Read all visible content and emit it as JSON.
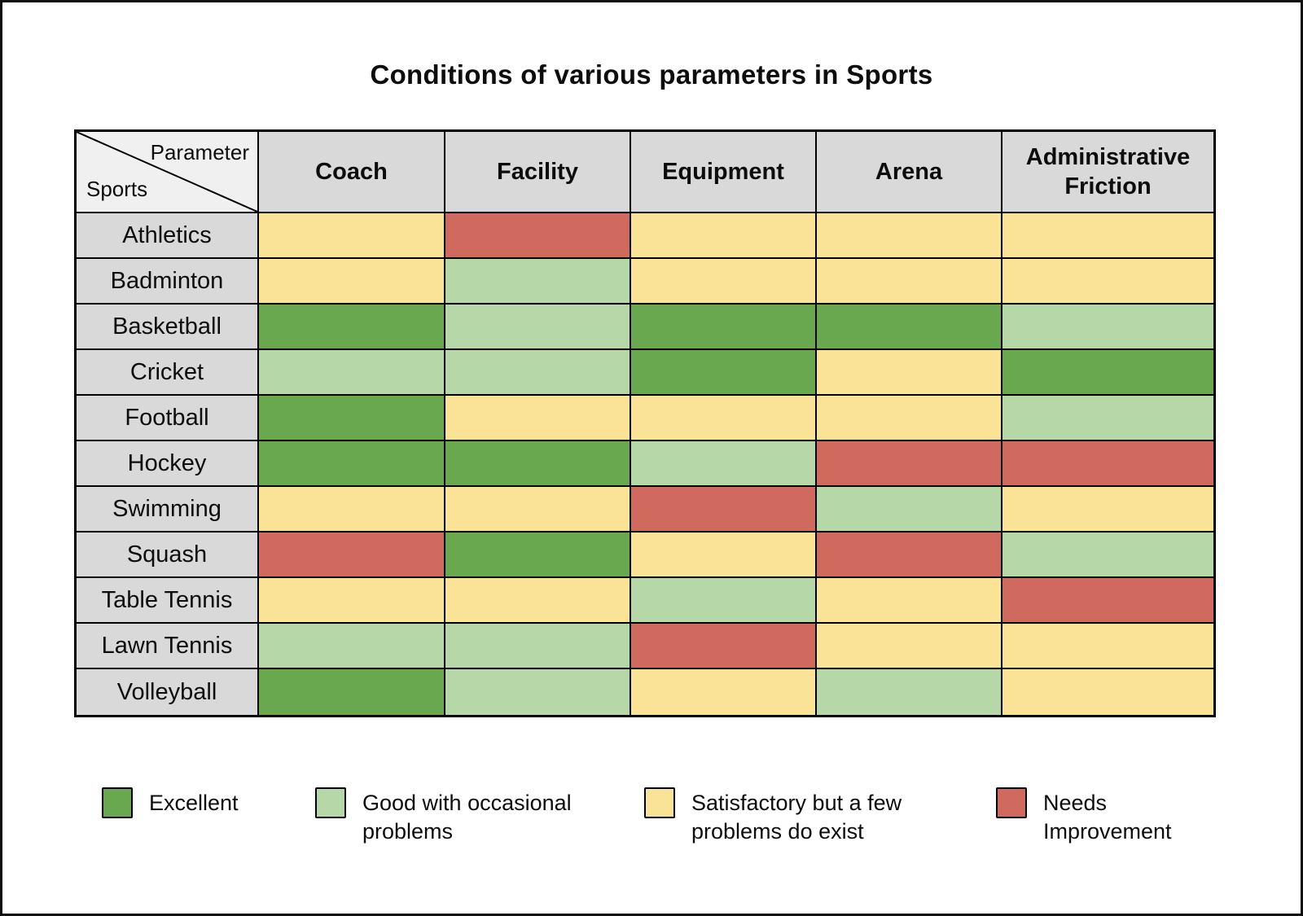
{
  "title": "Conditions of various parameters in Sports",
  "corner": {
    "top": "Parameter",
    "bottom": "Sports"
  },
  "colors": {
    "excellent": "#6aa84f",
    "good": "#b6d7a8",
    "satisfactory": "#fae396",
    "needs_improvement": "#d06a5f",
    "header_bg": "#d9d9d9",
    "corner_bg": "#f0f0f0",
    "border": "#000000"
  },
  "chart_data": {
    "type": "heatmap",
    "title": "Conditions of various parameters in Sports",
    "columns": [
      "Coach",
      "Facility",
      "Equipment",
      "Arena",
      "Administrative Friction"
    ],
    "rows": [
      "Athletics",
      "Badminton",
      "Basketball",
      "Cricket",
      "Football",
      "Hockey",
      "Swimming",
      "Squash",
      "Table Tennis",
      "Lawn Tennis",
      "Volleyball"
    ],
    "values": [
      [
        "satisfactory",
        "needs_improvement",
        "satisfactory",
        "satisfactory",
        "satisfactory"
      ],
      [
        "satisfactory",
        "good",
        "satisfactory",
        "satisfactory",
        "satisfactory"
      ],
      [
        "excellent",
        "good",
        "excellent",
        "excellent",
        "good"
      ],
      [
        "good",
        "good",
        "excellent",
        "satisfactory",
        "excellent"
      ],
      [
        "excellent",
        "satisfactory",
        "satisfactory",
        "satisfactory",
        "good"
      ],
      [
        "excellent",
        "excellent",
        "good",
        "needs_improvement",
        "needs_improvement"
      ],
      [
        "satisfactory",
        "satisfactory",
        "needs_improvement",
        "good",
        "satisfactory"
      ],
      [
        "needs_improvement",
        "excellent",
        "satisfactory",
        "needs_improvement",
        "good"
      ],
      [
        "satisfactory",
        "satisfactory",
        "good",
        "satisfactory",
        "needs_improvement"
      ],
      [
        "good",
        "good",
        "needs_improvement",
        "satisfactory",
        "satisfactory"
      ],
      [
        "excellent",
        "good",
        "satisfactory",
        "good",
        "satisfactory"
      ]
    ],
    "legend": [
      {
        "status": "excellent",
        "label": "Excellent"
      },
      {
        "status": "good",
        "label": "Good with occasional problems"
      },
      {
        "status": "satisfactory",
        "label": "Satisfactory but a few problems do exist"
      },
      {
        "status": "needs_improvement",
        "label": "Needs Improvement"
      }
    ]
  }
}
